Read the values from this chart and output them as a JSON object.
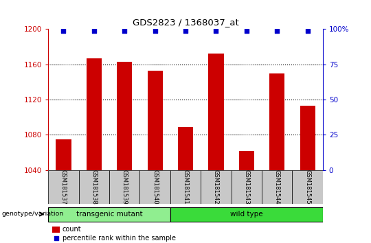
{
  "title": "GDS2823 / 1368037_at",
  "samples": [
    "GSM181537",
    "GSM181538",
    "GSM181539",
    "GSM181540",
    "GSM181541",
    "GSM181542",
    "GSM181543",
    "GSM181544",
    "GSM181545"
  ],
  "counts": [
    1075,
    1167,
    1163,
    1153,
    1089,
    1172,
    1062,
    1150,
    1113
  ],
  "percentile_ranks": [
    99,
    99,
    99,
    99,
    99,
    99,
    99,
    99,
    99
  ],
  "ylim_left": [
    1040,
    1200
  ],
  "ylim_right": [
    0,
    100
  ],
  "yticks_left": [
    1040,
    1080,
    1120,
    1160,
    1200
  ],
  "yticks_right": [
    0,
    25,
    50,
    75,
    100
  ],
  "groups": [
    {
      "label": "transgenic mutant",
      "start": 0,
      "end": 3,
      "color": "#90EE90"
    },
    {
      "label": "wild type",
      "start": 4,
      "end": 8,
      "color": "#3ADB3A"
    }
  ],
  "group_label": "genotype/variation",
  "bar_color": "#CC0000",
  "dot_color": "#0000CC",
  "tick_label_area_color": "#C8C8C8",
  "left_axis_color": "#CC0000",
  "right_axis_color": "#0000CC",
  "legend_count_color": "#CC0000",
  "legend_dot_color": "#0000CC"
}
